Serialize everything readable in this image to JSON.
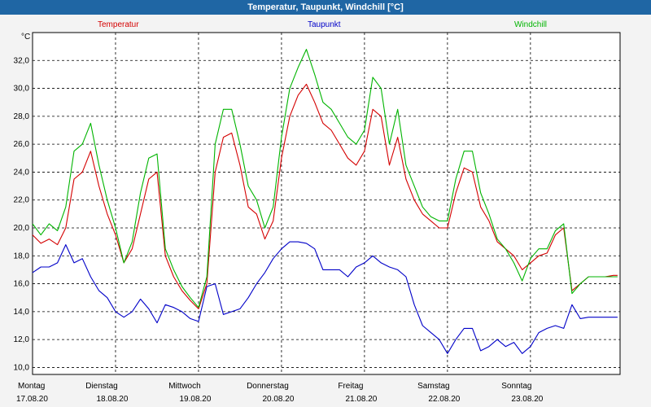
{
  "window": {
    "title": "Temperatur, Taupunkt, Windchill [°C]"
  },
  "chart_data": {
    "type": "line",
    "yunit": "°C",
    "ylim": [
      9.5,
      34.0
    ],
    "yticks": [
      10.0,
      12.0,
      14.0,
      16.0,
      18.0,
      20.0,
      22.0,
      24.0,
      26.0,
      28.0,
      30.0,
      32.0
    ],
    "ytick_labels": [
      "10,0",
      "12,0",
      "14,0",
      "16,0",
      "18,0",
      "20,0",
      "22,0",
      "24,0",
      "26,0",
      "28,0",
      "30,0",
      "32,0"
    ],
    "xlim": [
      0,
      7.08
    ],
    "x_labels": [
      {
        "day": "Montag",
        "date": "17.08.20"
      },
      {
        "day": "Dienstag",
        "date": "18.08.20"
      },
      {
        "day": "Mittwoch",
        "date": "19.08.20"
      },
      {
        "day": "Donnerstag",
        "date": "20.08.20"
      },
      {
        "day": "Freitag",
        "date": "21.08.20"
      },
      {
        "day": "Samstag",
        "date": "22.08.20"
      },
      {
        "day": "Sonntag",
        "date": "23.08.20"
      }
    ],
    "grid": true,
    "legend_position": "top",
    "series": [
      {
        "name": "Temperatur",
        "color": "#d40000",
        "x": [
          0,
          0.1,
          0.2,
          0.3,
          0.4,
          0.5,
          0.6,
          0.7,
          0.8,
          0.9,
          1.0,
          1.1,
          1.2,
          1.3,
          1.4,
          1.5,
          1.6,
          1.7,
          1.8,
          1.9,
          2.0,
          2.1,
          2.2,
          2.3,
          2.4,
          2.5,
          2.6,
          2.7,
          2.8,
          2.9,
          3.0,
          3.1,
          3.2,
          3.3,
          3.4,
          3.5,
          3.6,
          3.7,
          3.8,
          3.9,
          4.0,
          4.1,
          4.2,
          4.3,
          4.4,
          4.5,
          4.6,
          4.7,
          4.8,
          4.9,
          5.0,
          5.1,
          5.2,
          5.3,
          5.4,
          5.5,
          5.6,
          5.7,
          5.8,
          5.9,
          6.0,
          6.1,
          6.2,
          6.3,
          6.4,
          6.5,
          6.6,
          6.7,
          6.8,
          6.9,
          7.0,
          7.05
        ],
        "y": [
          19.5,
          18.9,
          19.2,
          18.8,
          20.0,
          23.5,
          24.0,
          25.5,
          23.0,
          21.0,
          19.5,
          17.5,
          18.5,
          21.0,
          23.5,
          24.0,
          18.0,
          16.5,
          15.5,
          14.8,
          14.2,
          16.0,
          24.0,
          26.5,
          26.8,
          24.5,
          21.5,
          21.0,
          19.2,
          20.5,
          25.0,
          28.0,
          29.5,
          30.3,
          29.0,
          27.5,
          27.0,
          26.0,
          25.0,
          24.5,
          25.5,
          28.5,
          28.0,
          24.5,
          26.5,
          23.5,
          22.0,
          21.0,
          20.5,
          20.0,
          20.0,
          22.5,
          24.3,
          24.0,
          21.5,
          20.5,
          19.0,
          18.5,
          18.0,
          17.0,
          17.5,
          18.0,
          18.2,
          19.5,
          20.0,
          15.5,
          16.0,
          16.5,
          16.5,
          16.5,
          16.6,
          16.6
        ]
      },
      {
        "name": "Taupunkt",
        "color": "#0000c8",
        "x": [
          0,
          0.1,
          0.2,
          0.3,
          0.4,
          0.5,
          0.6,
          0.7,
          0.8,
          0.9,
          1.0,
          1.1,
          1.2,
          1.3,
          1.4,
          1.5,
          1.6,
          1.7,
          1.8,
          1.9,
          2.0,
          2.1,
          2.2,
          2.3,
          2.4,
          2.5,
          2.6,
          2.7,
          2.8,
          2.9,
          3.0,
          3.1,
          3.2,
          3.3,
          3.4,
          3.5,
          3.6,
          3.7,
          3.8,
          3.9,
          4.0,
          4.1,
          4.2,
          4.3,
          4.4,
          4.5,
          4.6,
          4.7,
          4.8,
          4.9,
          5.0,
          5.1,
          5.2,
          5.3,
          5.4,
          5.5,
          5.6,
          5.7,
          5.8,
          5.9,
          6.0,
          6.1,
          6.2,
          6.3,
          6.4,
          6.5,
          6.6,
          6.7,
          6.8,
          6.9,
          7.0,
          7.05
        ],
        "y": [
          16.8,
          17.2,
          17.2,
          17.5,
          18.8,
          17.5,
          17.8,
          16.5,
          15.5,
          15.0,
          14.0,
          13.6,
          14.0,
          14.9,
          14.2,
          13.2,
          14.5,
          14.3,
          14.0,
          13.5,
          13.3,
          15.8,
          16.0,
          13.8,
          14.0,
          14.2,
          15.0,
          16.0,
          16.8,
          17.8,
          18.5,
          19.0,
          19.0,
          18.9,
          18.5,
          17.0,
          17.0,
          17.0,
          16.5,
          17.2,
          17.5,
          18.0,
          17.5,
          17.2,
          17.0,
          16.5,
          14.5,
          13.0,
          12.5,
          12.0,
          11.0,
          12.0,
          12.8,
          12.8,
          11.2,
          11.5,
          12.0,
          11.5,
          11.8,
          11.0,
          11.5,
          12.5,
          12.8,
          13.0,
          12.8,
          14.5,
          13.5,
          13.6,
          13.6,
          13.6,
          13.6,
          13.6
        ]
      },
      {
        "name": "Windchill",
        "color": "#00b400",
        "x": [
          0,
          0.1,
          0.2,
          0.3,
          0.4,
          0.5,
          0.6,
          0.7,
          0.8,
          0.9,
          1.0,
          1.1,
          1.2,
          1.3,
          1.4,
          1.5,
          1.6,
          1.7,
          1.8,
          1.9,
          2.0,
          2.1,
          2.2,
          2.3,
          2.4,
          2.5,
          2.6,
          2.7,
          2.8,
          2.9,
          3.0,
          3.1,
          3.2,
          3.3,
          3.4,
          3.5,
          3.6,
          3.7,
          3.8,
          3.9,
          4.0,
          4.1,
          4.2,
          4.3,
          4.4,
          4.5,
          4.6,
          4.7,
          4.8,
          4.9,
          5.0,
          5.1,
          5.2,
          5.3,
          5.4,
          5.5,
          5.6,
          5.7,
          5.8,
          5.9,
          6.0,
          6.1,
          6.2,
          6.3,
          6.4,
          6.5,
          6.6,
          6.7,
          6.8,
          6.9,
          7.0,
          7.05
        ],
        "y": [
          20.3,
          19.5,
          20.3,
          19.8,
          21.5,
          25.5,
          26.0,
          27.5,
          24.5,
          22.0,
          20.0,
          17.5,
          19.0,
          22.5,
          25.0,
          25.3,
          18.5,
          17.0,
          15.8,
          15.0,
          14.3,
          16.5,
          26.0,
          28.5,
          28.5,
          26.0,
          23.0,
          22.0,
          20.0,
          21.5,
          26.5,
          30.0,
          31.5,
          32.8,
          31.0,
          29.0,
          28.5,
          27.5,
          26.5,
          26.0,
          27.0,
          30.8,
          30.0,
          26.0,
          28.5,
          24.5,
          23.0,
          21.5,
          20.8,
          20.5,
          20.5,
          23.5,
          25.5,
          25.5,
          22.5,
          21.0,
          19.2,
          18.5,
          17.5,
          16.2,
          17.8,
          18.5,
          18.5,
          19.8,
          20.3,
          15.3,
          16.0,
          16.5,
          16.5,
          16.5,
          16.5,
          16.5
        ]
      }
    ]
  }
}
